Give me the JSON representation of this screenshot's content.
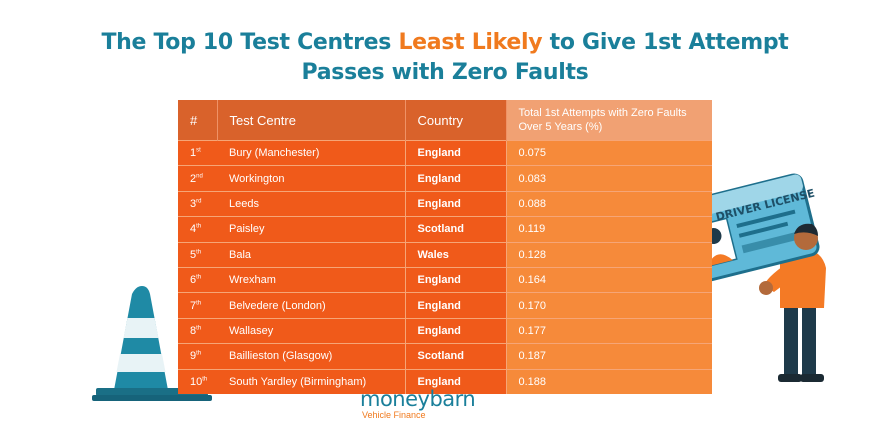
{
  "title": {
    "part1": "The Top 10 Test Centres ",
    "highlight": "Least Likely",
    "part2": " to Give 1st Attempt",
    "line2": "Passes with Zero Faults"
  },
  "chart_data": {
    "type": "table",
    "columns": [
      "#",
      "Test Centre",
      "Country",
      "Total 1st Attempts with Zero Faults Over 5 Years (%)"
    ],
    "rows": [
      {
        "rank": "1",
        "suffix": "st",
        "centre": "Bury (Manchester)",
        "country": "England",
        "value": "0.075"
      },
      {
        "rank": "2",
        "suffix": "nd",
        "centre": "Workington",
        "country": "England",
        "value": "0.083"
      },
      {
        "rank": "3",
        "suffix": "rd",
        "centre": "Leeds",
        "country": "England",
        "value": "0.088"
      },
      {
        "rank": "4",
        "suffix": "th",
        "centre": "Paisley",
        "country": "Scotland",
        "value": "0.119"
      },
      {
        "rank": "5",
        "suffix": "th",
        "centre": "Bala",
        "country": "Wales",
        "value": "0.128"
      },
      {
        "rank": "6",
        "suffix": "th",
        "centre": "Wrexham",
        "country": "England",
        "value": "0.164"
      },
      {
        "rank": "7",
        "suffix": "th",
        "centre": "Belvedere (London)",
        "country": "England",
        "value": "0.170"
      },
      {
        "rank": "8",
        "suffix": "th",
        "centre": "Wallasey",
        "country": "England",
        "value": "0.177"
      },
      {
        "rank": "9",
        "suffix": "th",
        "centre": "Baillieston (Glasgow)",
        "country": "Scotland",
        "value": "0.187"
      },
      {
        "rank": "10",
        "suffix": "th",
        "centre": "South Yardley (Birmingham)",
        "country": "England",
        "value": "0.188"
      }
    ]
  },
  "license_card": {
    "label": "DRIVER LICENSE"
  },
  "logo": {
    "name": "moneybarn",
    "sub": "Vehicle Finance"
  },
  "colors": {
    "title_teal": "#1a7f9a",
    "highlight_orange": "#f07a1e",
    "header_orange": "#d9622b",
    "row_orange": "#f05a1a",
    "value_column": "#f68a3a"
  }
}
